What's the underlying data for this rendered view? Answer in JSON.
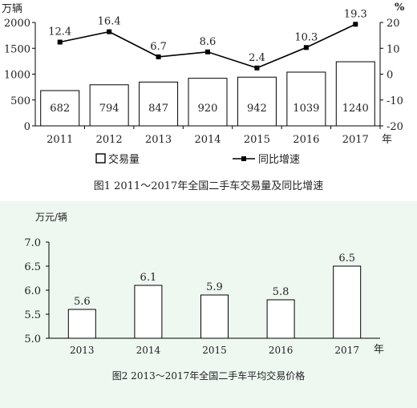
{
  "chart1": {
    "caption": "图1 2011～2017年全国二手车交易量及同比增速",
    "left_unit": "万辆",
    "right_unit": "%",
    "x_unit": "年",
    "legend": {
      "volume": "交易量",
      "growth": "同比增速"
    },
    "colors": {
      "bar_fill": "#ffffff",
      "bar_stroke": "#000000",
      "line": "#000000"
    }
  },
  "chart2": {
    "caption": "图2 2013～2017年全国二手车平均交易价格",
    "y_unit": "万元/辆",
    "x_unit": "年",
    "colors": {
      "bar_fill": "#ffffff",
      "bar_stroke": "#000000",
      "background": "#eef8f1"
    }
  },
  "chart_data": [
    {
      "type": "bar",
      "categories": [
        "2011",
        "2012",
        "2013",
        "2014",
        "2015",
        "2016",
        "2017"
      ],
      "series": [
        {
          "name": "交易量",
          "type": "bar",
          "axis": "left",
          "values": [
            682,
            794,
            847,
            920,
            942,
            1039,
            1240
          ]
        },
        {
          "name": "同比增速",
          "type": "line",
          "axis": "right",
          "values": [
            12.4,
            16.4,
            6.7,
            8.6,
            2.4,
            10.3,
            19.3
          ]
        }
      ],
      "y_left": {
        "label": "万辆",
        "ylim": [
          0,
          2000
        ],
        "ticks": [
          "0",
          "500",
          "1000",
          "1500",
          "2000"
        ]
      },
      "y_right": {
        "label": "%",
        "ylim": [
          -20,
          20
        ],
        "ticks": [
          "-20",
          "-10",
          "0",
          "10",
          "20"
        ]
      },
      "xlabel": "年",
      "data_labels": [
        "682",
        "794",
        "847",
        "920",
        "942",
        "1039",
        "1240"
      ],
      "line_labels": [
        "12.4",
        "16.4",
        "6.7",
        "8.6",
        "2.4",
        "10.3",
        "19.3"
      ],
      "legend_position": "bottom",
      "grid": false
    },
    {
      "type": "bar",
      "categories": [
        "2013",
        "2014",
        "2015",
        "2016",
        "2017"
      ],
      "values": [
        5.6,
        6.1,
        5.9,
        5.8,
        6.5
      ],
      "data_labels": [
        "5.6",
        "6.1",
        "5.9",
        "5.8",
        "6.5"
      ],
      "ylabel": "万元/辆",
      "xlabel": "年",
      "ylim": [
        5.0,
        7.0
      ],
      "ticks": [
        "5.0",
        "5.5",
        "6.0",
        "6.5",
        "7.0"
      ],
      "grid": false
    }
  ]
}
